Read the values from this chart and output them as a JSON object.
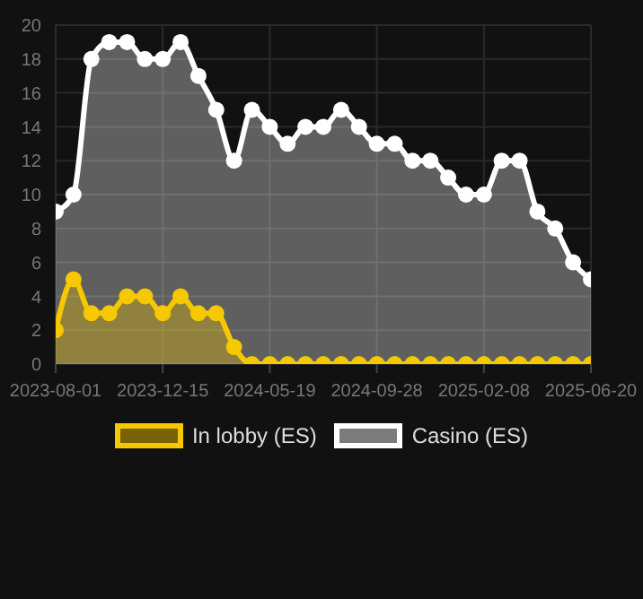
{
  "chart_data": {
    "type": "area",
    "categories": [
      "2023-08-01",
      null,
      null,
      null,
      null,
      null,
      "2023-12-15",
      null,
      null,
      null,
      null,
      null,
      "2024-05-19",
      null,
      null,
      null,
      null,
      null,
      "2024-09-28",
      null,
      null,
      null,
      null,
      null,
      "2025-02-08",
      null,
      null,
      null,
      null,
      null,
      "2025-06-20"
    ],
    "series": [
      {
        "name": "In lobby (ES)",
        "color": "#f5c800",
        "values": [
          2,
          5,
          3,
          3,
          4,
          4,
          3,
          4,
          3,
          3,
          1,
          0,
          0,
          0,
          0,
          0,
          0,
          0,
          0,
          0,
          0,
          0,
          0,
          0,
          0,
          0,
          0,
          0,
          0,
          0,
          0
        ]
      },
      {
        "name": "Casino (ES)",
        "color": "#ffffff",
        "values": [
          9,
          10,
          18,
          19,
          19,
          18,
          18,
          19,
          17,
          15,
          12,
          15,
          14,
          13,
          14,
          14,
          15,
          14,
          13,
          13,
          12,
          12,
          11,
          10,
          10,
          12,
          12,
          9,
          8,
          6,
          5
        ]
      }
    ],
    "ylim": [
      0,
      20
    ],
    "yticks": [
      0,
      2,
      4,
      6,
      8,
      10,
      12,
      14,
      16,
      18,
      20
    ],
    "grid": true,
    "legend": "bottom",
    "marker": "circle"
  }
}
